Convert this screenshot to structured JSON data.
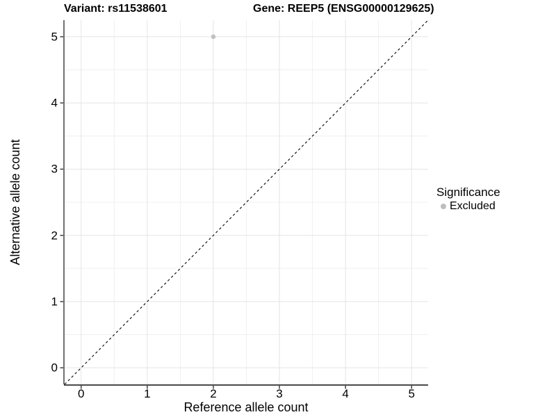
{
  "chart_data": {
    "type": "scatter",
    "title_left": "Variant: rs11538601",
    "title_right": "Gene: REEP5 (ENSG00000129625)",
    "xlabel": "Reference allele count",
    "ylabel": "Alternative allele count",
    "xlim": [
      -0.25,
      5.25
    ],
    "ylim": [
      -0.25,
      5.25
    ],
    "x_ticks": [
      0,
      1,
      2,
      3,
      4,
      5
    ],
    "y_ticks": [
      0,
      1,
      2,
      3,
      4,
      5
    ],
    "x_minor_ticks": [
      0.5,
      1.5,
      2.5,
      3.5,
      4.5
    ],
    "y_minor_ticks": [
      0.5,
      1.5,
      2.5,
      3.5,
      4.5
    ],
    "grid": "on",
    "series": [
      {
        "name": "Excluded",
        "color": "#c1c1c1",
        "points": [
          {
            "x": 2,
            "y": 5
          }
        ]
      }
    ],
    "reference_line": {
      "kind": "identity y=x",
      "style": "dashed",
      "color": "#000000",
      "from": [
        -0.25,
        -0.25
      ],
      "to": [
        5.25,
        5.25
      ]
    },
    "legend": {
      "title": "Significance",
      "position": "right",
      "items": [
        {
          "label": "Excluded",
          "color": "#bdbdbd",
          "marker": "circle"
        }
      ]
    }
  },
  "colors": {
    "background": "#ffffff",
    "grid_major": "#e4e4e4",
    "grid_minor": "#f0f0f0",
    "axis_line_x": "#4a4a4a",
    "axis_line_y": "#333333",
    "tick_mark": "#333333",
    "text": "#000000"
  }
}
